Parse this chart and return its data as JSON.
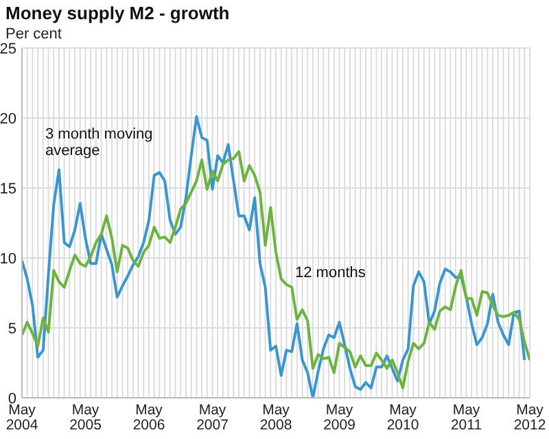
{
  "chart_data": {
    "type": "line",
    "title": "Money supply M2 - growth",
    "ylabel": "Per cent",
    "x": [
      "2004-05",
      "2004-06",
      "2004-07",
      "2004-08",
      "2004-09",
      "2004-10",
      "2004-11",
      "2004-12",
      "2005-01",
      "2005-02",
      "2005-03",
      "2005-04",
      "2005-05",
      "2005-06",
      "2005-07",
      "2005-08",
      "2005-09",
      "2005-10",
      "2005-11",
      "2005-12",
      "2006-01",
      "2006-02",
      "2006-03",
      "2006-04",
      "2006-05",
      "2006-06",
      "2006-07",
      "2006-08",
      "2006-09",
      "2006-10",
      "2006-11",
      "2006-12",
      "2007-01",
      "2007-02",
      "2007-03",
      "2007-04",
      "2007-05",
      "2007-06",
      "2007-07",
      "2007-08",
      "2007-09",
      "2007-10",
      "2007-11",
      "2007-12",
      "2008-01",
      "2008-02",
      "2008-03",
      "2008-04",
      "2008-05",
      "2008-06",
      "2008-07",
      "2008-08",
      "2008-09",
      "2008-10",
      "2008-11",
      "2008-12",
      "2009-01",
      "2009-02",
      "2009-03",
      "2009-04",
      "2009-05",
      "2009-06",
      "2009-07",
      "2009-08",
      "2009-09",
      "2009-10",
      "2009-11",
      "2009-12",
      "2010-01",
      "2010-02",
      "2010-03",
      "2010-04",
      "2010-05",
      "2010-06",
      "2010-07",
      "2010-08",
      "2010-09",
      "2010-10",
      "2010-11",
      "2010-12",
      "2011-01",
      "2011-02",
      "2011-03",
      "2011-04",
      "2011-05",
      "2011-06",
      "2011-07",
      "2011-08",
      "2011-09",
      "2011-10",
      "2011-11",
      "2011-12",
      "2012-01",
      "2012-02",
      "2012-03",
      "2012-04",
      "2012-05"
    ],
    "series": [
      {
        "name": "3 month moving average",
        "color": "#3a96cf",
        "values": [
          9.8,
          8.5,
          6.6,
          2.9,
          3.4,
          8.8,
          13.8,
          16.3,
          11.1,
          10.8,
          12.0,
          13.9,
          11.4,
          9.6,
          9.6,
          11.7,
          10.6,
          9.5,
          7.2,
          8.0,
          8.7,
          9.5,
          10.1,
          11.1,
          12.7,
          15.9,
          16.1,
          15.5,
          12.7,
          11.7,
          12.2,
          14.3,
          17.3,
          20.1,
          18.6,
          18.4,
          14.9,
          17.3,
          16.8,
          18.1,
          15.5,
          13.0,
          13.0,
          12.0,
          14.3,
          9.6,
          7.9,
          3.4,
          3.7,
          1.6,
          3.4,
          3.3,
          5.3,
          2.7,
          1.8,
          0,
          1.9,
          3.5,
          4.5,
          4.3,
          5.4,
          3.8,
          2.1,
          0.8,
          0.6,
          1.1,
          0.7,
          2.2,
          2.2,
          3.0,
          2.1,
          1.2,
          2.7,
          3.5,
          8.0,
          9.0,
          8.3,
          5.3,
          6.2,
          8.2,
          9.2,
          9.0,
          8.6,
          8.7,
          7.2,
          5.3,
          3.8,
          4.3,
          5.3,
          7.4,
          5.4,
          4.5,
          3.8,
          6.1,
          6.2,
          2.7,
          null
        ]
      },
      {
        "name": "12 months",
        "color": "#6db33f",
        "values": [
          4.5,
          5.4,
          4.6,
          3.7,
          5.7,
          4.7,
          9.1,
          8.3,
          7.9,
          9.1,
          10.2,
          9.6,
          9.4,
          10.1,
          11.1,
          11.7,
          13.0,
          11.4,
          9.0,
          10.9,
          10.7,
          9.8,
          9.4,
          10.4,
          10.9,
          12.2,
          11.4,
          11.5,
          11.1,
          12.2,
          13.5,
          13.9,
          14.7,
          15.5,
          17.0,
          14.9,
          16.2,
          15.5,
          16.7,
          17.0,
          17.1,
          17.6,
          15.5,
          16.6,
          15.9,
          14.7,
          10.9,
          13.6,
          10.4,
          8.5,
          8.1,
          7.9,
          5.6,
          6.3,
          5.5,
          2.1,
          3.1,
          2.8,
          2.9,
          1.8,
          3.9,
          3.6,
          3.3,
          2.2,
          3.0,
          2.3,
          2.3,
          3.2,
          2.7,
          2.1,
          2.7,
          1.8,
          0.7,
          2.6,
          3.9,
          3.5,
          3.9,
          5.4,
          4.9,
          6.2,
          6.5,
          6.3,
          8.0,
          9.1,
          7.1,
          7.1,
          5.9,
          7.6,
          7.5,
          6.6,
          5.9,
          5.8,
          5.9,
          6.1,
          5.6,
          4.0,
          2.7
        ]
      }
    ],
    "xlim": [
      "2004-05",
      "2012-05"
    ],
    "xticks": [
      {
        "value": "2004-05",
        "label": "May 2004"
      },
      {
        "value": "2004-06",
        "label": null
      },
      {
        "value": "2004-07",
        "label": null
      },
      {
        "value": "2004-08",
        "label": null
      },
      {
        "value": "2004-09",
        "label": null
      },
      {
        "value": "2004-10",
        "label": null
      },
      {
        "value": "2004-11",
        "label": null
      },
      {
        "value": "2004-12",
        "label": null
      },
      {
        "value": "2005-01",
        "label": null
      },
      {
        "value": "2005-02",
        "label": null
      },
      {
        "value": "2005-03",
        "label": null
      },
      {
        "value": "2005-04",
        "label": null
      },
      {
        "value": "2005-05",
        "label": "May 2005"
      },
      {
        "value": "2005-06",
        "label": null
      },
      {
        "value": "2005-07",
        "label": null
      },
      {
        "value": "2005-08",
        "label": null
      },
      {
        "value": "2005-09",
        "label": null
      },
      {
        "value": "2005-10",
        "label": null
      },
      {
        "value": "2005-11",
        "label": null
      },
      {
        "value": "2005-12",
        "label": null
      },
      {
        "value": "2006-01",
        "label": null
      },
      {
        "value": "2006-02",
        "label": null
      },
      {
        "value": "2006-03",
        "label": null
      },
      {
        "value": "2006-04",
        "label": null
      },
      {
        "value": "2006-05",
        "label": "May 2006"
      },
      {
        "value": "2006-06",
        "label": null
      },
      {
        "value": "2006-07",
        "label": null
      },
      {
        "value": "2006-08",
        "label": null
      },
      {
        "value": "2006-09",
        "label": null
      },
      {
        "value": "2006-10",
        "label": null
      },
      {
        "value": "2006-11",
        "label": null
      },
      {
        "value": "2006-12",
        "label": null
      },
      {
        "value": "2007-01",
        "label": null
      },
      {
        "value": "2007-02",
        "label": null
      },
      {
        "value": "2007-03",
        "label": null
      },
      {
        "value": "2007-04",
        "label": null
      },
      {
        "value": "2007-05",
        "label": "May 2007"
      },
      {
        "value": "2007-06",
        "label": null
      },
      {
        "value": "2007-07",
        "label": null
      },
      {
        "value": "2007-08",
        "label": null
      },
      {
        "value": "2007-09",
        "label": null
      },
      {
        "value": "2007-10",
        "label": null
      },
      {
        "value": "2007-11",
        "label": null
      },
      {
        "value": "2007-12",
        "label": null
      },
      {
        "value": "2008-01",
        "label": null
      },
      {
        "value": "2008-02",
        "label": null
      },
      {
        "value": "2008-03",
        "label": null
      },
      {
        "value": "2008-04",
        "label": null
      },
      {
        "value": "2008-05",
        "label": "May 2008"
      },
      {
        "value": "2008-06",
        "label": null
      },
      {
        "value": "2008-07",
        "label": null
      },
      {
        "value": "2008-08",
        "label": null
      },
      {
        "value": "2008-09",
        "label": null
      },
      {
        "value": "2008-10",
        "label": null
      },
      {
        "value": "2008-11",
        "label": null
      },
      {
        "value": "2008-12",
        "label": null
      },
      {
        "value": "2009-01",
        "label": null
      },
      {
        "value": "2009-02",
        "label": null
      },
      {
        "value": "2009-03",
        "label": null
      },
      {
        "value": "2009-04",
        "label": null
      },
      {
        "value": "2009-05",
        "label": "May 2009"
      },
      {
        "value": "2009-06",
        "label": null
      },
      {
        "value": "2009-07",
        "label": null
      },
      {
        "value": "2009-08",
        "label": null
      },
      {
        "value": "2009-09",
        "label": null
      },
      {
        "value": "2009-10",
        "label": null
      },
      {
        "value": "2009-11",
        "label": null
      },
      {
        "value": "2009-12",
        "label": null
      },
      {
        "value": "2010-01",
        "label": null
      },
      {
        "value": "2010-02",
        "label": null
      },
      {
        "value": "2010-03",
        "label": null
      },
      {
        "value": "2010-04",
        "label": null
      },
      {
        "value": "2010-05",
        "label": "May 2010"
      },
      {
        "value": "2010-06",
        "label": null
      },
      {
        "value": "2010-07",
        "label": null
      },
      {
        "value": "2010-08",
        "label": null
      },
      {
        "value": "2010-09",
        "label": null
      },
      {
        "value": "2010-10",
        "label": null
      },
      {
        "value": "2010-11",
        "label": null
      },
      {
        "value": "2010-12",
        "label": null
      },
      {
        "value": "2011-01",
        "label": null
      },
      {
        "value": "2011-02",
        "label": null
      },
      {
        "value": "2011-03",
        "label": null
      },
      {
        "value": "2011-04",
        "label": null
      },
      {
        "value": "2011-05",
        "label": "May 2011"
      },
      {
        "value": "2011-06",
        "label": null
      },
      {
        "value": "2011-07",
        "label": null
      },
      {
        "value": "2011-08",
        "label": null
      },
      {
        "value": "2011-09",
        "label": null
      },
      {
        "value": "2011-10",
        "label": null
      },
      {
        "value": "2011-11",
        "label": null
      },
      {
        "value": "2011-12",
        "label": null
      },
      {
        "value": "2012-01",
        "label": null
      },
      {
        "value": "2012-02",
        "label": null
      },
      {
        "value": "2012-03",
        "label": null
      },
      {
        "value": "2012-04",
        "label": null
      },
      {
        "value": "2012-05",
        "label": "May 2012"
      }
    ],
    "ylim": [
      0,
      25
    ],
    "yticks": [
      0,
      5,
      10,
      15,
      20,
      25
    ],
    "grid": true,
    "legend": false,
    "marker": "none",
    "line_style": "solid"
  }
}
